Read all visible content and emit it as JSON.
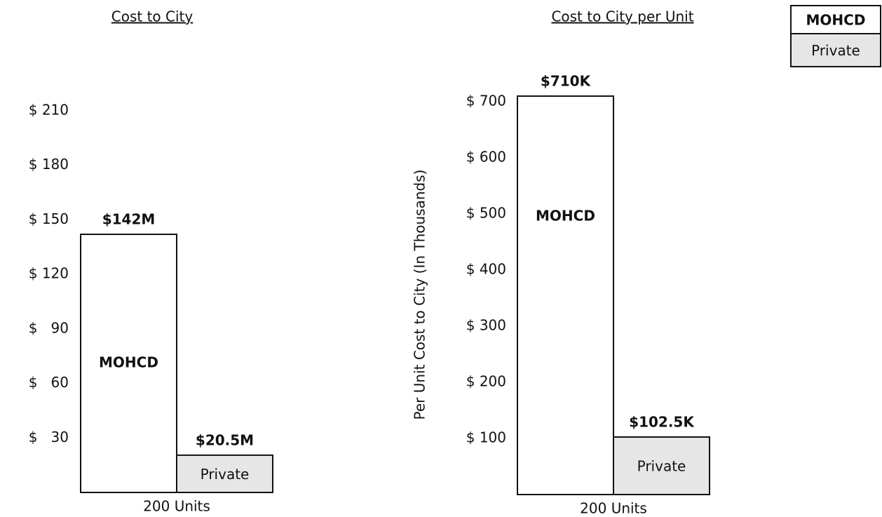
{
  "chart_data": [
    {
      "type": "bar",
      "title": "Cost to City",
      "x_label": "200 Units",
      "categories": [
        "MOHCD",
        "Private"
      ],
      "values": [
        142,
        20.5
      ],
      "value_labels": [
        "$142M",
        "$20.5M"
      ],
      "colors": [
        "#ffffff",
        "#e6e6e6"
      ],
      "ylim": [
        0,
        230
      ],
      "yticks": [
        {
          "value": 30,
          "label": "$   30"
        },
        {
          "value": 60,
          "label": "$   60"
        },
        {
          "value": 90,
          "label": "$   90"
        },
        {
          "value": 120,
          "label": "$ 120"
        },
        {
          "value": 150,
          "label": "$ 150"
        },
        {
          "value": 180,
          "label": "$ 180"
        },
        {
          "value": 210,
          "label": "$ 210"
        }
      ]
    },
    {
      "type": "bar",
      "title": "Cost to City per Unit",
      "x_label": "200 Units",
      "y_label": "Per Unit Cost to City (In Thousands)",
      "categories": [
        "MOHCD",
        "Private"
      ],
      "values": [
        710,
        102.5
      ],
      "value_labels": [
        "$710K",
        "$102.5K"
      ],
      "colors": [
        "#ffffff",
        "#e6e6e6"
      ],
      "ylim": [
        0,
        760
      ],
      "yticks": [
        {
          "value": 100,
          "label": "$ 100"
        },
        {
          "value": 200,
          "label": "$ 200"
        },
        {
          "value": 300,
          "label": "$ 300"
        },
        {
          "value": 400,
          "label": "$ 400"
        },
        {
          "value": 500,
          "label": "$ 500"
        },
        {
          "value": 600,
          "label": "$ 600"
        },
        {
          "value": 700,
          "label": "$ 700"
        }
      ]
    }
  ]
}
